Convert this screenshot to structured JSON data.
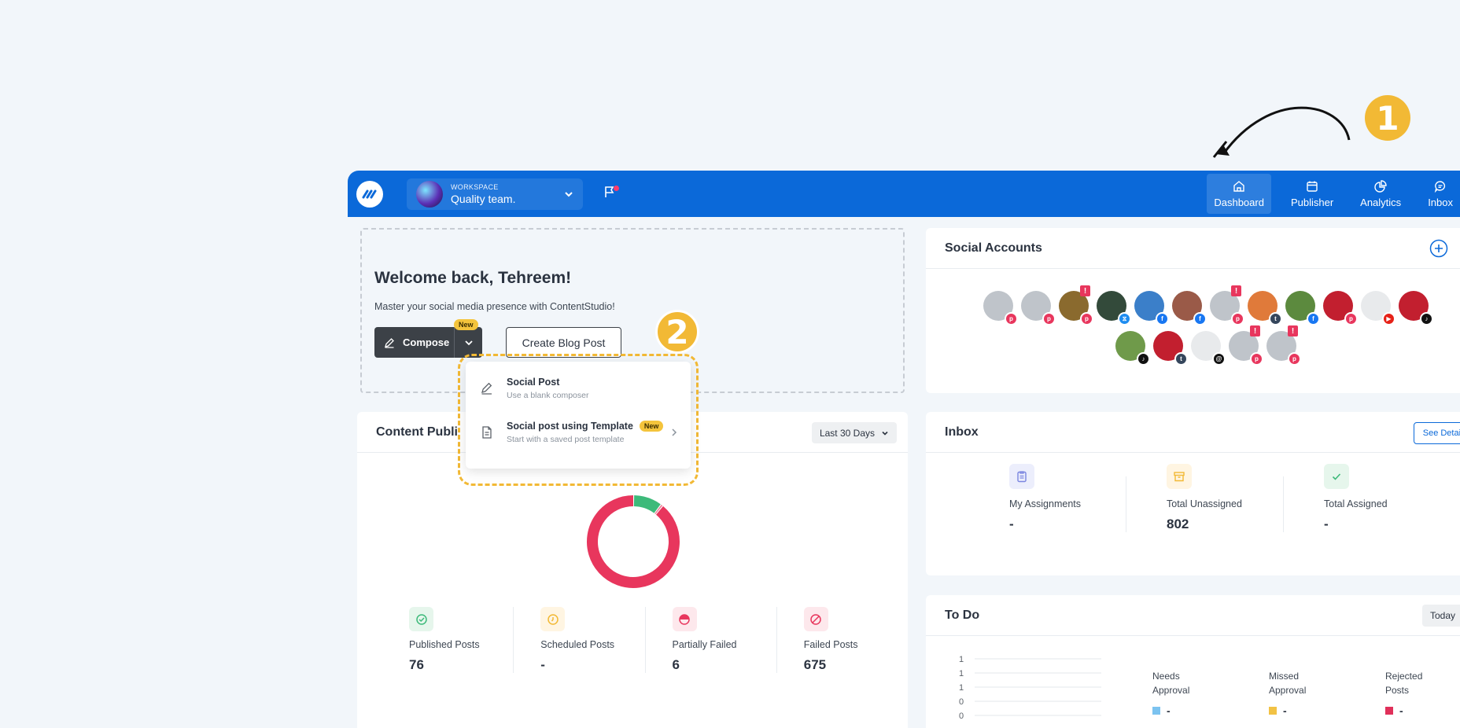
{
  "colors": {
    "brand": "#0b69d9",
    "annotation": "#f2b935",
    "danger": "#e8365d",
    "success": "#3dba7a"
  },
  "annotations": {
    "step_one": "1",
    "step_two": "2"
  },
  "header": {
    "workspace_label": "WORKSPACE",
    "workspace_name": "Quality team.",
    "nav": [
      {
        "label": "Dashboard",
        "icon": "home-icon",
        "active": true
      },
      {
        "label": "Publisher",
        "icon": "calendar-icon"
      },
      {
        "label": "Analytics",
        "icon": "pie-chart-icon"
      },
      {
        "label": "Inbox",
        "icon": "chat-icon"
      }
    ]
  },
  "welcome": {
    "title": "Welcome back, Tehreem!",
    "subtitle": "Master your social media presence with ContentStudio!",
    "compose_label": "Compose",
    "new_badge": "New",
    "blog_label": "Create Blog Post"
  },
  "compose_menu": {
    "items": [
      {
        "title": "Social Post",
        "subtitle": "Use a blank composer",
        "icon": "pencil-icon"
      },
      {
        "title": "Social post using Template",
        "subtitle": "Start with a saved post template",
        "badge": "New",
        "icon": "document-icon"
      }
    ]
  },
  "publishing": {
    "title": "Content Publi",
    "range": "Last 30 Days",
    "donut": {
      "published": 76,
      "scheduled": 0,
      "partially_failed": 6,
      "failed": 675
    },
    "stats": [
      {
        "label": "Published Posts",
        "value": "76",
        "icon": "check-circle-icon"
      },
      {
        "label": "Scheduled Posts",
        "value": "-",
        "icon": "clock-icon"
      },
      {
        "label": "Partially Failed",
        "value": "6",
        "icon": "half-circle-icon"
      },
      {
        "label": "Failed Posts",
        "value": "675",
        "icon": "ban-icon"
      }
    ]
  },
  "social_accounts": {
    "title": "Social Accounts",
    "rows": [
      [
        {
          "avatar": "#bfc4ca",
          "network": "pinterest",
          "warn": false
        },
        {
          "avatar": "#bfc4ca",
          "network": "pinterest",
          "warn": false
        },
        {
          "avatar": "#8a6a2e",
          "network": "pinterest",
          "warn": true
        },
        {
          "avatar": "#334a3a",
          "network": "bluesky",
          "warn": false
        },
        {
          "avatar": "#3b7fc9",
          "network": "facebook",
          "warn": false
        },
        {
          "avatar": "#9a5a48",
          "network": "facebook",
          "warn": false
        },
        {
          "avatar": "#bfc4ca",
          "network": "pinterest",
          "warn": true
        },
        {
          "avatar": "#e07a3a",
          "network": "tumblr",
          "warn": false
        },
        {
          "avatar": "#5c8a3e",
          "network": "facebook",
          "warn": false
        },
        {
          "avatar": "#c21f2f",
          "network": "pinterest",
          "warn": false
        },
        {
          "avatar": "#e8eaec",
          "network": "youtube",
          "warn": false
        },
        {
          "avatar": "#c21f2f",
          "network": "tiktok",
          "warn": false
        }
      ],
      [
        {
          "avatar": "#6f9a4a",
          "network": "tiktok",
          "warn": false
        },
        {
          "avatar": "#c21f2f",
          "network": "tumblr",
          "warn": false
        },
        {
          "avatar": "#e8eaec",
          "network": "threads",
          "warn": false
        },
        {
          "avatar": "#bfc4ca",
          "network": "pinterest",
          "warn": true
        },
        {
          "avatar": "#bfc4ca",
          "network": "pinterest",
          "warn": true
        }
      ]
    ]
  },
  "inbox": {
    "title": "Inbox",
    "details_label": "See Details",
    "stats": [
      {
        "label": "My Assignments",
        "value": "-",
        "icon": "clipboard-icon"
      },
      {
        "label": "Total Unassigned",
        "value": "802",
        "icon": "archive-icon"
      },
      {
        "label": "Total Assigned",
        "value": "-",
        "icon": "check-icon"
      }
    ]
  },
  "todo": {
    "title": "To Do",
    "range": "Today",
    "chart_ticks": [
      "1",
      "1",
      "1",
      "0",
      "0"
    ],
    "legend": [
      {
        "line1": "Needs",
        "line2": "Approval",
        "value": "-",
        "color": "#7cc3f0"
      },
      {
        "line1": "Missed",
        "line2": "Approval",
        "value": "-",
        "color": "#f2c244"
      },
      {
        "line1": "Rejected",
        "line2": "Posts",
        "value": "-",
        "color": "#e0305a"
      }
    ]
  }
}
